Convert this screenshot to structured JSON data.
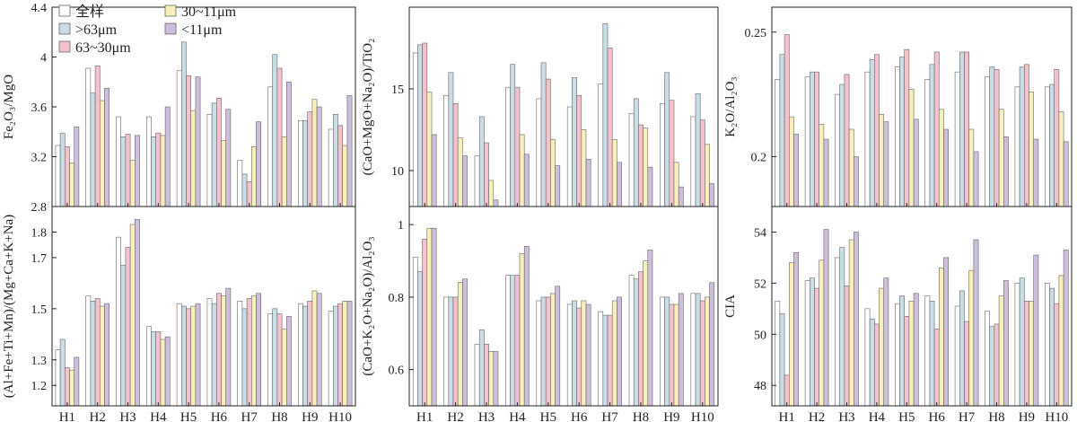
{
  "legend": {
    "position": "top-left",
    "items": [
      {
        "label": "全样",
        "color": "#ffffff"
      },
      {
        "label": ">63μm",
        "color": "#c9dde6"
      },
      {
        "label": "63~30μm",
        "color": "#f4c2cc"
      },
      {
        "label": "30~11μm",
        "color": "#f9efb8"
      },
      {
        "label": "<11μm",
        "color": "#cdbfdc"
      }
    ]
  },
  "chart_data": [
    {
      "type": "bar",
      "ylabel": "Fe₂O₃/MgO",
      "ylim": [
        2.8,
        4.4
      ],
      "yticks": [
        "2.8",
        "3.2",
        "3.6",
        "4",
        "4.4"
      ],
      "categories": [
        "H1",
        "H2",
        "H3",
        "H4",
        "H5",
        "H6",
        "H7",
        "H8",
        "H9",
        "H10"
      ],
      "series": [
        {
          "name": "全样",
          "values": [
            3.29,
            3.91,
            3.52,
            3.52,
            3.89,
            3.54,
            3.17,
            3.76,
            3.49,
            3.42
          ]
        },
        {
          "name": ">63μm",
          "values": [
            3.39,
            3.71,
            3.36,
            3.36,
            4.12,
            3.63,
            3.06,
            4.02,
            3.49,
            3.54
          ]
        },
        {
          "name": "63~30μm",
          "values": [
            3.28,
            3.93,
            3.38,
            3.39,
            3.85,
            3.67,
            3.0,
            3.91,
            3.56,
            3.45
          ]
        },
        {
          "name": "30~11μm",
          "values": [
            3.15,
            3.65,
            3.17,
            3.37,
            3.57,
            3.33,
            3.28,
            3.36,
            3.66,
            3.29
          ]
        },
        {
          "name": "<11μm",
          "values": [
            3.44,
            3.75,
            3.37,
            3.6,
            3.84,
            3.58,
            3.48,
            3.8,
            3.6,
            3.69
          ]
        }
      ]
    },
    {
      "type": "bar",
      "ylabel": "(CaO+MgO+Na₂O)/TiO₂",
      "ylim": [
        7.8,
        20
      ],
      "yticks": [
        "10",
        "15"
      ],
      "categories": [
        "H1",
        "H2",
        "H3",
        "H4",
        "H5",
        "H6",
        "H7",
        "H8",
        "H9",
        "H10"
      ],
      "series": [
        {
          "name": "全样",
          "values": [
            17.2,
            14.6,
            10.9,
            15.1,
            14.4,
            13.9,
            15.3,
            13.5,
            14.1,
            13.3
          ]
        },
        {
          "name": ">63μm",
          "values": [
            17.7,
            16.0,
            13.3,
            16.5,
            16.6,
            15.7,
            19.0,
            14.4,
            16.0,
            14.7
          ]
        },
        {
          "name": "63~30μm",
          "values": [
            17.8,
            14.1,
            11.7,
            15.1,
            15.6,
            14.6,
            17.5,
            12.8,
            14.3,
            13.1
          ]
        },
        {
          "name": "30~11μm",
          "values": [
            14.8,
            12.0,
            9.4,
            12.2,
            11.9,
            12.5,
            11.9,
            12.6,
            10.5,
            11.6
          ]
        },
        {
          "name": "<11μm",
          "values": [
            12.2,
            10.9,
            8.2,
            11.0,
            10.3,
            10.7,
            10.5,
            10.2,
            9.0,
            9.2
          ]
        }
      ]
    },
    {
      "type": "bar",
      "ylabel": "K₂O/Al₂O₃",
      "ylim": [
        0.18,
        0.26
      ],
      "yticks": [
        "0.2",
        "0.25"
      ],
      "categories": [
        "H1",
        "H2",
        "H3",
        "H4",
        "H5",
        "H6",
        "H7",
        "H8",
        "H9",
        "H10"
      ],
      "series": [
        {
          "name": "全样",
          "values": [
            0.231,
            0.232,
            0.225,
            0.234,
            0.236,
            0.231,
            0.234,
            0.232,
            0.228,
            0.228
          ]
        },
        {
          "name": ">63μm",
          "values": [
            0.241,
            0.234,
            0.229,
            0.239,
            0.24,
            0.237,
            0.242,
            0.236,
            0.236,
            0.229
          ]
        },
        {
          "name": "63~30μm",
          "values": [
            0.249,
            0.234,
            0.233,
            0.241,
            0.243,
            0.242,
            0.242,
            0.235,
            0.237,
            0.235
          ]
        },
        {
          "name": "30~11μm",
          "values": [
            0.216,
            0.213,
            0.211,
            0.217,
            0.227,
            0.219,
            0.211,
            0.219,
            0.226,
            0.218
          ]
        },
        {
          "name": "<11μm",
          "values": [
            0.209,
            0.207,
            0.2,
            0.214,
            0.215,
            0.211,
            0.202,
            0.208,
            0.207,
            0.206
          ]
        }
      ]
    },
    {
      "type": "bar",
      "ylabel": "(Al+Fe+Ti+Mn)/(Mg+Ca+K+Na)",
      "ylim": [
        1.12,
        1.9
      ],
      "yticks": [
        "1.2",
        "1.3",
        "1.5",
        "1.7",
        "1.8"
      ],
      "categories": [
        "H1",
        "H2",
        "H3",
        "H4",
        "H5",
        "H6",
        "H7",
        "H8",
        "H9",
        "H10"
      ],
      "series": [
        {
          "name": "全样",
          "values": [
            1.34,
            1.55,
            1.78,
            1.43,
            1.52,
            1.54,
            1.53,
            1.48,
            1.52,
            1.49
          ]
        },
        {
          "name": ">63μm",
          "values": [
            1.38,
            1.53,
            1.67,
            1.41,
            1.51,
            1.52,
            1.5,
            1.5,
            1.51,
            1.51
          ]
        },
        {
          "name": "63~30μm",
          "values": [
            1.27,
            1.54,
            1.74,
            1.41,
            1.5,
            1.56,
            1.54,
            1.48,
            1.53,
            1.52
          ]
        },
        {
          "name": "30~11μm",
          "values": [
            1.26,
            1.51,
            1.83,
            1.38,
            1.51,
            1.55,
            1.55,
            1.42,
            1.57,
            1.53
          ]
        },
        {
          "name": "<11μm",
          "values": [
            1.31,
            1.52,
            1.85,
            1.39,
            1.52,
            1.58,
            1.56,
            1.47,
            1.56,
            1.53
          ]
        }
      ]
    },
    {
      "type": "bar",
      "ylabel": "(CaO+K₂O+Na₂O)/Al₂O₃",
      "ylim": [
        0.5,
        1.05
      ],
      "yticks": [
        "0.6",
        "0.8",
        "1"
      ],
      "categories": [
        "H1",
        "H2",
        "H3",
        "H4",
        "H5",
        "H6",
        "H7",
        "H8",
        "H9",
        "H10"
      ],
      "series": [
        {
          "name": "全样",
          "values": [
            0.91,
            0.8,
            0.67,
            0.86,
            0.79,
            0.78,
            0.76,
            0.86,
            0.8,
            0.81
          ]
        },
        {
          "name": ">63μm",
          "values": [
            0.87,
            0.8,
            0.71,
            0.86,
            0.8,
            0.79,
            0.75,
            0.85,
            0.8,
            0.81
          ]
        },
        {
          "name": "63~30μm",
          "values": [
            0.96,
            0.8,
            0.67,
            0.86,
            0.8,
            0.77,
            0.75,
            0.87,
            0.78,
            0.79
          ]
        },
        {
          "name": "30~11μm",
          "values": [
            0.99,
            0.84,
            0.65,
            0.92,
            0.81,
            0.79,
            0.79,
            0.9,
            0.78,
            0.8
          ]
        },
        {
          "name": "<11μm",
          "values": [
            0.99,
            0.85,
            0.65,
            0.94,
            0.83,
            0.78,
            0.8,
            0.93,
            0.81,
            0.84
          ]
        }
      ]
    },
    {
      "type": "bar",
      "ylabel": "CIA",
      "ylim": [
        47.2,
        55
      ],
      "yticks": [
        "48",
        "50",
        "52",
        "54"
      ],
      "categories": [
        "H1",
        "H2",
        "H3",
        "H4",
        "H5",
        "H6",
        "H7",
        "H8",
        "H9",
        "H10"
      ],
      "series": [
        {
          "name": "全样",
          "values": [
            51.3,
            52.1,
            53.0,
            51.0,
            51.2,
            51.5,
            51.1,
            50.9,
            52.0,
            52.0
          ]
        },
        {
          "name": ">63μm",
          "values": [
            50.8,
            52.2,
            53.4,
            50.6,
            51.5,
            51.3,
            51.7,
            50.3,
            52.2,
            51.8
          ]
        },
        {
          "name": "63~30μm",
          "values": [
            48.4,
            51.8,
            51.9,
            50.4,
            50.7,
            50.2,
            50.5,
            50.4,
            51.3,
            51.2
          ]
        },
        {
          "name": "30~11μm",
          "values": [
            52.8,
            52.9,
            53.7,
            51.8,
            51.3,
            52.6,
            52.5,
            51.5,
            51.3,
            52.3
          ]
        },
        {
          "name": "<11μm",
          "values": [
            53.2,
            54.1,
            54.0,
            52.2,
            51.6,
            53.0,
            53.7,
            52.1,
            53.1,
            53.3
          ]
        }
      ]
    }
  ]
}
